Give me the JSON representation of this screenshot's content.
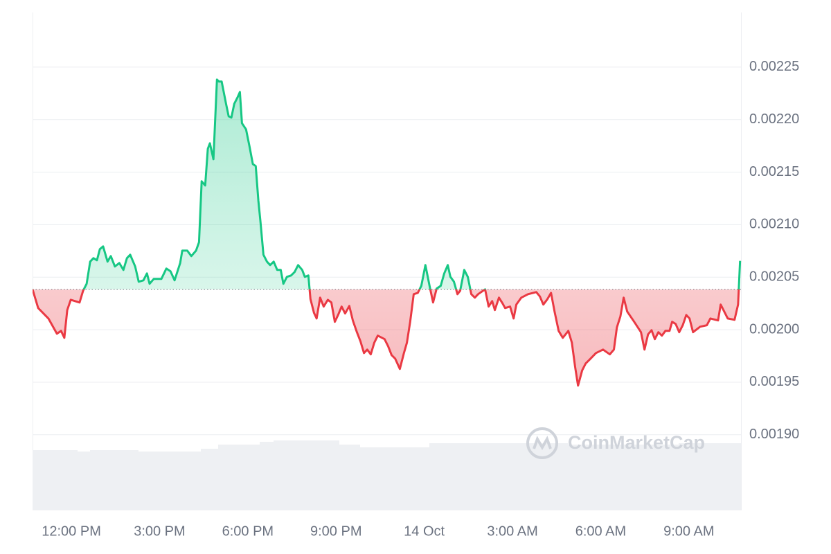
{
  "chart_data": {
    "type": "line",
    "watermark": "CoinMarketCap",
    "up_color": "#16c784",
    "down_color": "#ea3943",
    "baseline": 0.0020384,
    "xlim": [
      -1.32,
      22.77
    ],
    "xticks": [
      {
        "value": 0,
        "label": "12:00 PM"
      },
      {
        "value": 3,
        "label": "3:00 PM"
      },
      {
        "value": 6,
        "label": "6:00 PM"
      },
      {
        "value": 9,
        "label": "9:00 PM"
      },
      {
        "value": 12,
        "label": "14 Oct"
      },
      {
        "value": 15,
        "label": "3:00 AM"
      },
      {
        "value": 18,
        "label": "6:00 AM"
      },
      {
        "value": 21,
        "label": "9:00 AM"
      }
    ],
    "ylim": [
      0.001828,
      0.002302
    ],
    "yticks": [
      {
        "value": 0.0019,
        "label": "0.00190"
      },
      0.00195,
      {
        "value": 0.002,
        "label": "0.00200"
      },
      0.00205,
      {
        "value": 0.0021,
        "label": "0.00210"
      },
      0.00215,
      {
        "value": 0.0022,
        "label": "0.00220"
      },
      0.00225
    ],
    "grid": true,
    "x": [
      -1.32,
      -1.13,
      -0.78,
      -0.49,
      -0.35,
      -0.24,
      -0.14,
      -0.02,
      0.28,
      0.4,
      0.52,
      0.64,
      0.75,
      0.87,
      0.97,
      1.08,
      1.23,
      1.34,
      1.48,
      1.63,
      1.77,
      1.89,
      2.0,
      2.17,
      2.29,
      2.45,
      2.57,
      2.66,
      2.8,
      3.06,
      3.23,
      3.37,
      3.51,
      3.7,
      3.77,
      3.94,
      4.08,
      4.24,
      4.34,
      4.43,
      4.55,
      4.64,
      4.71,
      4.83,
      4.95,
      5.02,
      5.11,
      5.26,
      5.35,
      5.44,
      5.54,
      5.66,
      5.73,
      5.8,
      5.94,
      6.06,
      6.17,
      6.27,
      6.36,
      6.43,
      6.53,
      6.65,
      6.76,
      6.88,
      7.0,
      7.12,
      7.21,
      7.33,
      7.47,
      7.59,
      7.71,
      7.85,
      7.94,
      8.06,
      8.13,
      8.25,
      8.34,
      8.46,
      8.58,
      8.72,
      8.84,
      8.96,
      9.07,
      9.19,
      9.31,
      9.45,
      9.57,
      9.71,
      9.83,
      9.95,
      10.06,
      10.18,
      10.3,
      10.42,
      10.65,
      10.77,
      10.89,
      11.01,
      11.17,
      11.31,
      11.41,
      11.52,
      11.64,
      11.78,
      11.9,
      12.04,
      12.18,
      12.3,
      12.42,
      12.56,
      12.68,
      12.8,
      12.89,
      13.01,
      13.13,
      13.22,
      13.36,
      13.48,
      13.6,
      13.72,
      13.83,
      14.07,
      14.19,
      14.31,
      14.4,
      14.54,
      14.66,
      14.75,
      14.92,
      15.04,
      15.13,
      15.3,
      15.53,
      15.81,
      15.93,
      16.05,
      16.19,
      16.31,
      16.43,
      16.57,
      16.71,
      16.9,
      17.02,
      17.13,
      17.23,
      17.37,
      17.49,
      17.61,
      17.84,
      18.08,
      18.31,
      18.45,
      18.55,
      18.67,
      18.78,
      18.9,
      19.14,
      19.37,
      19.49,
      19.61,
      19.73,
      19.84,
      19.96,
      20.08,
      20.2,
      20.34,
      20.43,
      20.55,
      20.67,
      20.79,
      20.91,
      21.02,
      21.14,
      21.38,
      21.61,
      21.73,
      21.99,
      22.08,
      22.32,
      22.55,
      22.67,
      22.74
    ],
    "values": [
      0.0020384,
      0.0020206,
      0.0020107,
      0.0019962,
      0.0019989,
      0.0019923,
      0.0020187,
      0.0020285,
      0.0020259,
      0.0020371,
      0.0020437,
      0.0020648,
      0.0020681,
      0.0020661,
      0.0020767,
      0.0020793,
      0.0020648,
      0.0020701,
      0.0020602,
      0.0020635,
      0.0020569,
      0.0020681,
      0.0020714,
      0.0020602,
      0.0020457,
      0.002047,
      0.0020536,
      0.0020437,
      0.0020483,
      0.0020483,
      0.0020582,
      0.0020556,
      0.002047,
      0.0020635,
      0.0020753,
      0.0020753,
      0.0020701,
      0.0020753,
      0.0020833,
      0.0021413,
      0.0021373,
      0.0021722,
      0.0021775,
      0.0021623,
      0.0022381,
      0.0022362,
      0.0022362,
      0.0022151,
      0.0022032,
      0.0022019,
      0.0022151,
      0.0022217,
      0.0022263,
      0.0021966,
      0.0021907,
      0.0021742,
      0.0021577,
      0.0021558,
      0.0021228,
      0.002103,
      0.0020714,
      0.0020648,
      0.0020615,
      0.0020648,
      0.0020569,
      0.0020569,
      0.0020437,
      0.0020503,
      0.0020516,
      0.0020549,
      0.0020615,
      0.0020569,
      0.0020503,
      0.0020516,
      0.0020292,
      0.002016,
      0.0020107,
      0.0020305,
      0.002022,
      0.0020285,
      0.0020259,
      0.0020075,
      0.002014,
      0.002022,
      0.0020154,
      0.0020226,
      0.0020088,
      0.0019976,
      0.001989,
      0.0019778,
      0.0019811,
      0.0019765,
      0.0019877,
      0.0019943,
      0.001991,
      0.0019844,
      0.0019758,
      0.0019725,
      0.0019626,
      0.0019778,
      0.0019877,
      0.0020075,
      0.0020338,
      0.0020351,
      0.0020417,
      0.0020615,
      0.0020417,
      0.0020259,
      0.0020391,
      0.0020417,
      0.0020536,
      0.0020615,
      0.0020503,
      0.0020457,
      0.0020338,
      0.0020371,
      0.0020569,
      0.0020503,
      0.0020338,
      0.0020305,
      0.0020338,
      0.0020384,
      0.002022,
      0.0020272,
      0.0020187,
      0.0020305,
      0.0020252,
      0.0020206,
      0.002022,
      0.0020107,
      0.0020239,
      0.0020305,
      0.0020338,
      0.0020358,
      0.0020318,
      0.0020239,
      0.0020292,
      0.0020351,
      0.0020173,
      0.0019989,
      0.0019923,
      0.0019989,
      0.0019877,
      0.0019646,
      0.0019468,
      0.0019613,
      0.0019679,
      0.0019712,
      0.0019778,
      0.0019811,
      0.0019765,
      0.0019811,
      0.0020022,
      0.0020127,
      0.0020305,
      0.0020173,
      0.0020075,
      0.0019976,
      0.0019811,
      0.0019956,
      0.0019995,
      0.001991,
      0.0019976,
      0.0019943,
      0.0019989,
      0.0019989,
      0.0020075,
      0.0020055,
      0.0019976,
      0.0020042,
      0.002014,
      0.0020107,
      0.0019976,
      0.0020028,
      0.0020042,
      0.0020107,
      0.0020088,
      0.0020239,
      0.0020107,
      0.0020094,
      0.0020239,
      0.0020655
    ]
  }
}
